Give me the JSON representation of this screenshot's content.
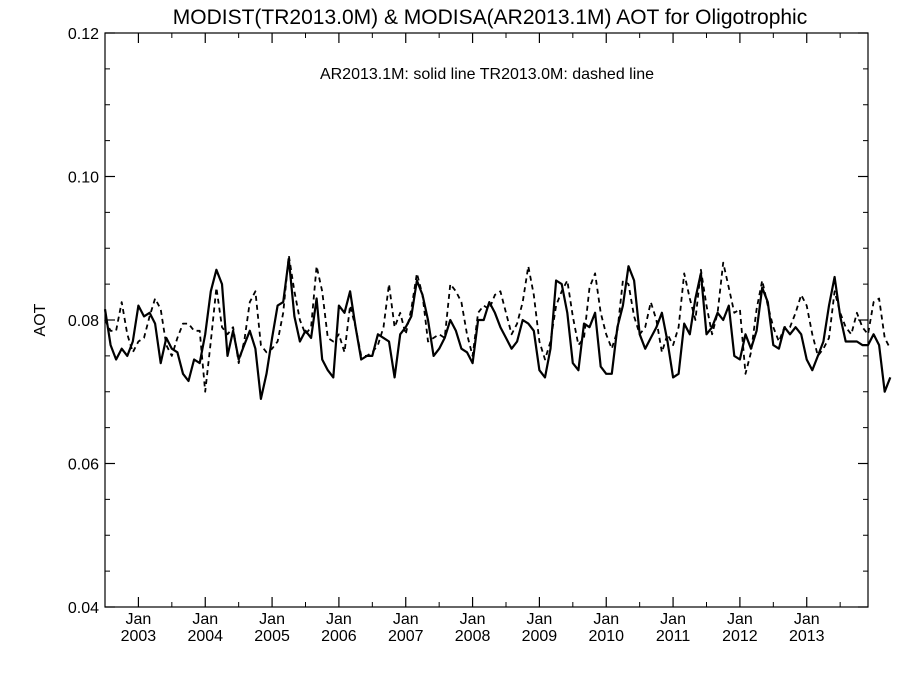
{
  "chart_data": {
    "type": "line",
    "title": "MODIST(TR2013.0M) & MODISA(AR2013.1M)  AOT for Oligotrophic",
    "annotation": "AR2013.1M: solid line   TR2013.0M: dashed line",
    "ylabel": "AOT",
    "xlabel": "",
    "ylim": [
      0.04,
      0.12
    ],
    "yticks": [
      "0.04",
      "0.06",
      "0.08",
      "0.10",
      "0.12"
    ],
    "xlim": [
      "2002-07",
      "2013-12"
    ],
    "xticks": [
      {
        "month": "Jan",
        "year": "2003",
        "date": "2003-01"
      },
      {
        "month": "Jan",
        "year": "2004",
        "date": "2004-01"
      },
      {
        "month": "Jan",
        "year": "2005",
        "date": "2005-01"
      },
      {
        "month": "Jan",
        "year": "2006",
        "date": "2006-01"
      },
      {
        "month": "Jan",
        "year": "2007",
        "date": "2007-01"
      },
      {
        "month": "Jan",
        "year": "2008",
        "date": "2008-01"
      },
      {
        "month": "Jan",
        "year": "2009",
        "date": "2009-01"
      },
      {
        "month": "Jan",
        "year": "2010",
        "date": "2010-01"
      },
      {
        "month": "Jan",
        "year": "2011",
        "date": "2011-01"
      },
      {
        "month": "Jan",
        "year": "2012",
        "date": "2012-01"
      },
      {
        "month": "Jan",
        "year": "2013",
        "date": "2013-01"
      }
    ],
    "series": [
      {
        "name": "AR2013.1M",
        "style": "solid",
        "start": "2002-07",
        "values": [
          0.0815,
          0.0765,
          0.0745,
          0.076,
          0.075,
          0.077,
          0.082,
          0.0805,
          0.081,
          0.0795,
          0.074,
          0.0775,
          0.076,
          0.0755,
          0.0725,
          0.0715,
          0.0745,
          0.074,
          0.078,
          0.084,
          0.087,
          0.085,
          0.075,
          0.0785,
          0.0745,
          0.0765,
          0.0785,
          0.076,
          0.069,
          0.0725,
          0.0775,
          0.082,
          0.0825,
          0.0885,
          0.0805,
          0.077,
          0.0785,
          0.0775,
          0.083,
          0.0745,
          0.073,
          0.072,
          0.082,
          0.081,
          0.084,
          0.079,
          0.0745,
          0.075,
          0.075,
          0.078,
          0.0775,
          0.077,
          0.072,
          0.078,
          0.079,
          0.0805,
          0.0855,
          0.0835,
          0.08,
          0.075,
          0.076,
          0.0775,
          0.08,
          0.0785,
          0.076,
          0.0755,
          0.074,
          0.08,
          0.08,
          0.0825,
          0.081,
          0.079,
          0.0775,
          0.076,
          0.077,
          0.08,
          0.0795,
          0.0785,
          0.073,
          0.072,
          0.076,
          0.0855,
          0.085,
          0.081,
          0.074,
          0.073,
          0.0795,
          0.079,
          0.081,
          0.0735,
          0.0725,
          0.0725,
          0.079,
          0.082,
          0.0875,
          0.0855,
          0.078,
          0.076,
          0.0775,
          0.079,
          0.081,
          0.077,
          0.072,
          0.0725,
          0.0795,
          0.078,
          0.083,
          0.0865,
          0.078,
          0.079,
          0.081,
          0.08,
          0.082,
          0.075,
          0.0745,
          0.078,
          0.076,
          0.0785,
          0.0845,
          0.0825,
          0.0765,
          0.076,
          0.079,
          0.078,
          0.079,
          0.078,
          0.0745,
          0.073,
          0.075,
          0.077,
          0.082,
          0.086,
          0.0805,
          0.077,
          0.077,
          0.077,
          0.0765,
          0.0765,
          0.078,
          0.0765,
          0.07,
          0.072
        ]
      },
      {
        "name": "TR2013.0M",
        "style": "dashed",
        "start": "2002-07",
        "values": [
          0.08,
          0.0785,
          0.0785,
          0.0825,
          0.078,
          0.0755,
          0.077,
          0.0775,
          0.0805,
          0.083,
          0.0815,
          0.0765,
          0.075,
          0.0775,
          0.0795,
          0.0795,
          0.0785,
          0.0785,
          0.07,
          0.077,
          0.0845,
          0.079,
          0.078,
          0.079,
          0.074,
          0.077,
          0.0825,
          0.084,
          0.0765,
          0.0755,
          0.076,
          0.077,
          0.081,
          0.089,
          0.084,
          0.08,
          0.078,
          0.079,
          0.0875,
          0.084,
          0.0775,
          0.077,
          0.078,
          0.0755,
          0.082,
          0.079,
          0.075,
          0.075,
          0.0755,
          0.0765,
          0.079,
          0.085,
          0.079,
          0.081,
          0.078,
          0.0815,
          0.0865,
          0.0835,
          0.077,
          0.0775,
          0.078,
          0.0775,
          0.085,
          0.084,
          0.0825,
          0.078,
          0.075,
          0.081,
          0.082,
          0.0815,
          0.0835,
          0.084,
          0.081,
          0.078,
          0.0795,
          0.0825,
          0.0875,
          0.0835,
          0.077,
          0.0745,
          0.077,
          0.082,
          0.084,
          0.0855,
          0.0805,
          0.0765,
          0.0775,
          0.0845,
          0.0865,
          0.081,
          0.078,
          0.076,
          0.0785,
          0.0855,
          0.085,
          0.0805,
          0.078,
          0.079,
          0.0825,
          0.08,
          0.0755,
          0.078,
          0.0765,
          0.079,
          0.0865,
          0.083,
          0.08,
          0.087,
          0.082,
          0.078,
          0.081,
          0.088,
          0.0845,
          0.081,
          0.0815,
          0.0725,
          0.0755,
          0.0815,
          0.0855,
          0.082,
          0.079,
          0.077,
          0.079,
          0.079,
          0.081,
          0.0835,
          0.082,
          0.078,
          0.075,
          0.076,
          0.0775,
          0.084,
          0.081,
          0.079,
          0.078,
          0.081,
          0.079,
          0.078,
          0.0825,
          0.083,
          0.0775,
          0.076
        ]
      }
    ],
    "grid": false,
    "legend": "none"
  }
}
